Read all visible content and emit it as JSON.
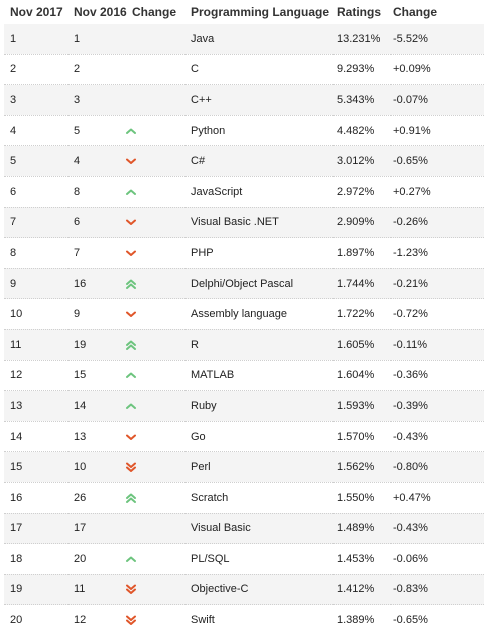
{
  "table": {
    "headers": [
      "Nov 2017",
      "Nov 2016",
      "Change",
      "Programming Language",
      "Ratings",
      "Change"
    ],
    "rows": [
      {
        "rank_2017": "1",
        "rank_2016": "1",
        "trend": "none",
        "language": "Java",
        "rating": "13.231%",
        "change": "-5.52%"
      },
      {
        "rank_2017": "2",
        "rank_2016": "2",
        "trend": "none",
        "language": "C",
        "rating": "9.293%",
        "change": "+0.09%"
      },
      {
        "rank_2017": "3",
        "rank_2016": "3",
        "trend": "none",
        "language": "C++",
        "rating": "5.343%",
        "change": "-0.07%"
      },
      {
        "rank_2017": "4",
        "rank_2016": "5",
        "trend": "up",
        "language": "Python",
        "rating": "4.482%",
        "change": "+0.91%"
      },
      {
        "rank_2017": "5",
        "rank_2016": "4",
        "trend": "down",
        "language": "C#",
        "rating": "3.012%",
        "change": "-0.65%"
      },
      {
        "rank_2017": "6",
        "rank_2016": "8",
        "trend": "up",
        "language": "JavaScript",
        "rating": "2.972%",
        "change": "+0.27%"
      },
      {
        "rank_2017": "7",
        "rank_2016": "6",
        "trend": "down",
        "language": "Visual Basic .NET",
        "rating": "2.909%",
        "change": "-0.26%"
      },
      {
        "rank_2017": "8",
        "rank_2016": "7",
        "trend": "down",
        "language": "PHP",
        "rating": "1.897%",
        "change": "-1.23%"
      },
      {
        "rank_2017": "9",
        "rank_2016": "16",
        "trend": "double-up",
        "language": "Delphi/Object Pascal",
        "rating": "1.744%",
        "change": "-0.21%"
      },
      {
        "rank_2017": "10",
        "rank_2016": "9",
        "trend": "down",
        "language": "Assembly language",
        "rating": "1.722%",
        "change": "-0.72%"
      },
      {
        "rank_2017": "11",
        "rank_2016": "19",
        "trend": "double-up",
        "language": "R",
        "rating": "1.605%",
        "change": "-0.11%"
      },
      {
        "rank_2017": "12",
        "rank_2016": "15",
        "trend": "up",
        "language": "MATLAB",
        "rating": "1.604%",
        "change": "-0.36%"
      },
      {
        "rank_2017": "13",
        "rank_2016": "14",
        "trend": "up",
        "language": "Ruby",
        "rating": "1.593%",
        "change": "-0.39%"
      },
      {
        "rank_2017": "14",
        "rank_2016": "13",
        "trend": "down",
        "language": "Go",
        "rating": "1.570%",
        "change": "-0.43%"
      },
      {
        "rank_2017": "15",
        "rank_2016": "10",
        "trend": "double-down",
        "language": "Perl",
        "rating": "1.562%",
        "change": "-0.80%"
      },
      {
        "rank_2017": "16",
        "rank_2016": "26",
        "trend": "double-up",
        "language": "Scratch",
        "rating": "1.550%",
        "change": "+0.47%"
      },
      {
        "rank_2017": "17",
        "rank_2016": "17",
        "trend": "none",
        "language": "Visual Basic",
        "rating": "1.489%",
        "change": "-0.43%"
      },
      {
        "rank_2017": "18",
        "rank_2016": "20",
        "trend": "up",
        "language": "PL/SQL",
        "rating": "1.453%",
        "change": "-0.06%"
      },
      {
        "rank_2017": "19",
        "rank_2016": "11",
        "trend": "double-down",
        "language": "Objective-C",
        "rating": "1.412%",
        "change": "-0.83%"
      },
      {
        "rank_2017": "20",
        "rank_2016": "12",
        "trend": "double-down",
        "language": "Swift",
        "rating": "1.389%",
        "change": "-0.65%"
      }
    ]
  },
  "colors": {
    "up": "#6dc47e",
    "down": "#e0562a",
    "stripe": "#f4f4f4"
  },
  "icons": {
    "up": "chevron-up-icon",
    "double-up": "double-chevron-up-icon",
    "down": "chevron-down-icon",
    "double-down": "double-chevron-down-icon"
  }
}
